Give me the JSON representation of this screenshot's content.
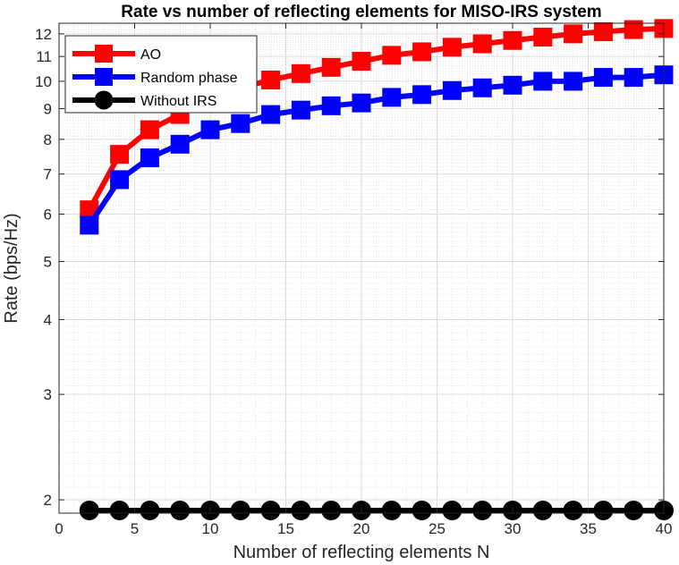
{
  "chart_data": {
    "type": "line",
    "title": "Rate vs number of reflecting elements for MISO-IRS system",
    "xlabel": "Number of reflecting elements N",
    "ylabel": "Rate (bps/Hz)",
    "xlim": [
      0,
      40
    ],
    "ylim": [
      1.9,
      12.5
    ],
    "yscale": "log",
    "xticks": [
      0,
      5,
      10,
      15,
      20,
      25,
      30,
      35,
      40
    ],
    "yticks": [
      2,
      3,
      4,
      5,
      6,
      7,
      8,
      9,
      10,
      11,
      12
    ],
    "grid": true,
    "minor_grid": true,
    "legend_position": "top-left",
    "x": [
      2,
      4,
      6,
      8,
      10,
      12,
      14,
      16,
      18,
      20,
      22,
      24,
      26,
      28,
      30,
      32,
      34,
      36,
      38,
      40
    ],
    "series": [
      {
        "name": "AO",
        "color": "#ff0000",
        "marker": "square",
        "values": [
          6.1,
          7.55,
          8.3,
          8.8,
          9.5,
          9.75,
          10.05,
          10.3,
          10.55,
          10.8,
          11.05,
          11.2,
          11.4,
          11.55,
          11.7,
          11.85,
          12.0,
          12.1,
          12.2,
          12.25
        ]
      },
      {
        "name": "Random phase",
        "color": "#0000ff",
        "marker": "square",
        "values": [
          5.75,
          6.85,
          7.45,
          7.85,
          8.3,
          8.5,
          8.8,
          8.95,
          9.1,
          9.2,
          9.4,
          9.5,
          9.65,
          9.75,
          9.85,
          10.0,
          10.0,
          10.15,
          10.15,
          10.25
        ]
      },
      {
        "name": "Without IRS",
        "color": "#000000",
        "marker": "circle",
        "values": [
          1.92,
          1.92,
          1.92,
          1.92,
          1.92,
          1.92,
          1.92,
          1.92,
          1.92,
          1.92,
          1.92,
          1.92,
          1.92,
          1.92,
          1.92,
          1.92,
          1.92,
          1.92,
          1.92,
          1.92
        ]
      }
    ]
  }
}
